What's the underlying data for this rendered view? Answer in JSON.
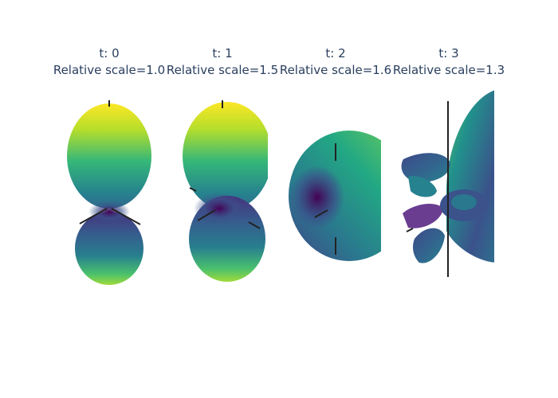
{
  "chart_data": {
    "type": "3d-surface",
    "colorscale": "viridis",
    "colorscale_stops": [
      "#440154",
      "#3b528b",
      "#21918c",
      "#5ec962",
      "#fde725"
    ],
    "panels": [
      {
        "t_label": "t: 0",
        "scale_label": "Relative scale=1.0",
        "t": 0,
        "relative_scale": 1.0
      },
      {
        "t_label": "t: 1",
        "scale_label": "Relative scale=1.5",
        "t": 1,
        "relative_scale": 1.5
      },
      {
        "t_label": "t: 2",
        "scale_label": "Relative scale=1.6",
        "t": 2,
        "relative_scale": 1.6
      },
      {
        "t_label": "t: 3",
        "scale_label": "Relative scale=1.3",
        "t": 3,
        "relative_scale": 1.3
      }
    ]
  }
}
